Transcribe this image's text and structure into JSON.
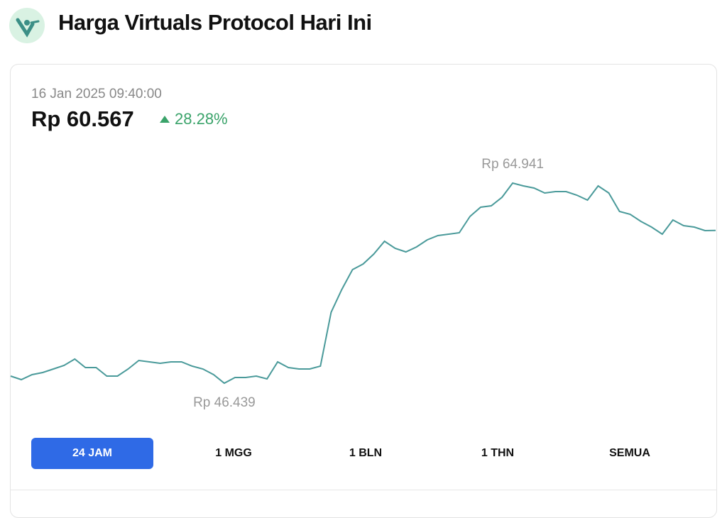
{
  "header": {
    "title": "Harga Virtuals Protocol Hari Ini"
  },
  "price": {
    "timestamp": "16 Jan 2025 09:40:00",
    "value": "Rp 60.567",
    "change": "28.28%"
  },
  "chart_data": {
    "type": "line",
    "color": "#4a9a9a",
    "values": [
      47098,
      46770,
      47229,
      47426,
      47754,
      48082,
      48672,
      47885,
      47885,
      47098,
      47098,
      47754,
      48541,
      48410,
      48279,
      48410,
      48410,
      48016,
      47754,
      47229,
      46439,
      46967,
      46967,
      47098,
      46835,
      48410,
      47885,
      47754,
      47754,
      48016,
      52992,
      55101,
      56938,
      57463,
      58381,
      59562,
      58906,
      58578,
      59037,
      59693,
      60087,
      60218,
      60349,
      61858,
      62711,
      62842,
      63629,
      64941,
      64679,
      64482,
      64023,
      64154,
      64154,
      63826,
      63367,
      64679,
      64023,
      62317,
      62055,
      61399,
      60874,
      60218,
      61530,
      61005,
      60874,
      60546,
      60567
    ],
    "high": {
      "value": 64941,
      "label": "Rp 64.941"
    },
    "low": {
      "value": 46439,
      "label": "Rp 46.439"
    }
  },
  "tabs": [
    "24 JAM",
    "1 MGG",
    "1 BLN",
    "1 THN",
    "SEMUA"
  ]
}
